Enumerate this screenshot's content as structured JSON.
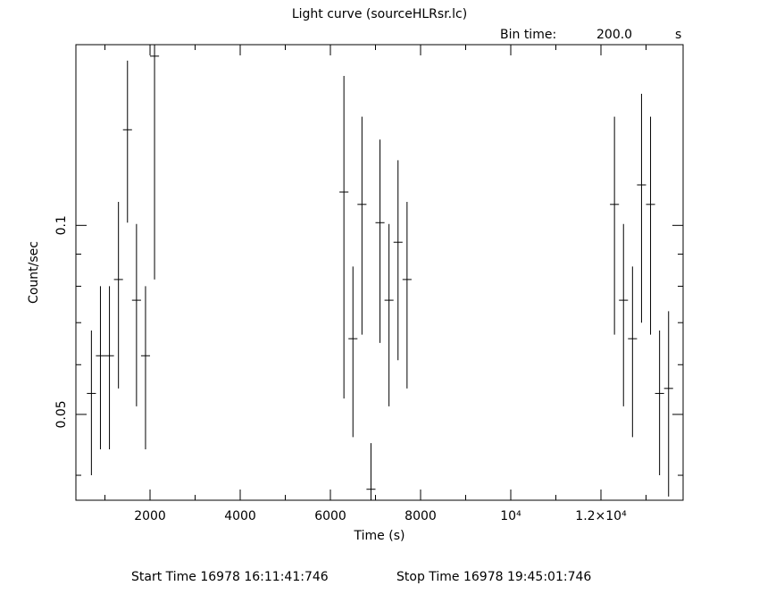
{
  "chart_data": {
    "type": "errorbar",
    "title": "Light curve (sourceHLRsr.lc)",
    "bin_time_label": "Bin time:",
    "bin_time": {
      "value": 200,
      "label": "200.0"
    },
    "bin_time_unit": "s",
    "xlabel": "Time (s)",
    "ylabel": "Count/sec",
    "start_time": "Start Time 16978 16:11:41:746",
    "stop_time": "Stop Time 16978 19:45:01:746",
    "color": "#000000",
    "ylog": true,
    "xlim": [
      356,
      13822
    ],
    "ylim": [
      0.0365,
      0.194
    ],
    "xticks": [
      2000,
      4000,
      6000,
      8000,
      {
        "value": 10000,
        "label": "10⁴"
      },
      {
        "value": 12000,
        "label": "1.2×10⁴"
      }
    ],
    "xminorticks": [
      1000,
      3000,
      5000,
      7000,
      9000,
      11000,
      13000
    ],
    "yticks": [
      0.05,
      0.1
    ],
    "yminorticks": [
      0.04,
      0.06,
      0.07,
      0.08,
      0.09
    ],
    "x": [
      700,
      900,
      1100,
      1300,
      1500,
      1700,
      1900,
      2100,
      6300,
      6500,
      6700,
      6900,
      7100,
      7300,
      7500,
      7700,
      12300,
      12500,
      12700,
      12900,
      13100,
      13300,
      13500
    ],
    "values": [
      0.054,
      0.062,
      0.062,
      0.082,
      0.142,
      0.076,
      0.062,
      0.186,
      0.113,
      0.066,
      0.108,
      0.038,
      0.101,
      0.076,
      0.094,
      0.082,
      0.108,
      0.076,
      0.066,
      0.116,
      0.108,
      0.054,
      0.055
    ],
    "errors": [
      0.014,
      0.018,
      0.018,
      0.027,
      0.041,
      0.0245,
      0.018,
      0.104,
      0.06,
      0.02,
      0.041,
      0.007,
      0.036,
      0.0245,
      0.033,
      0.027,
      0.041,
      0.0245,
      0.02,
      0.046,
      0.041,
      0.014,
      0.018
    ]
  }
}
